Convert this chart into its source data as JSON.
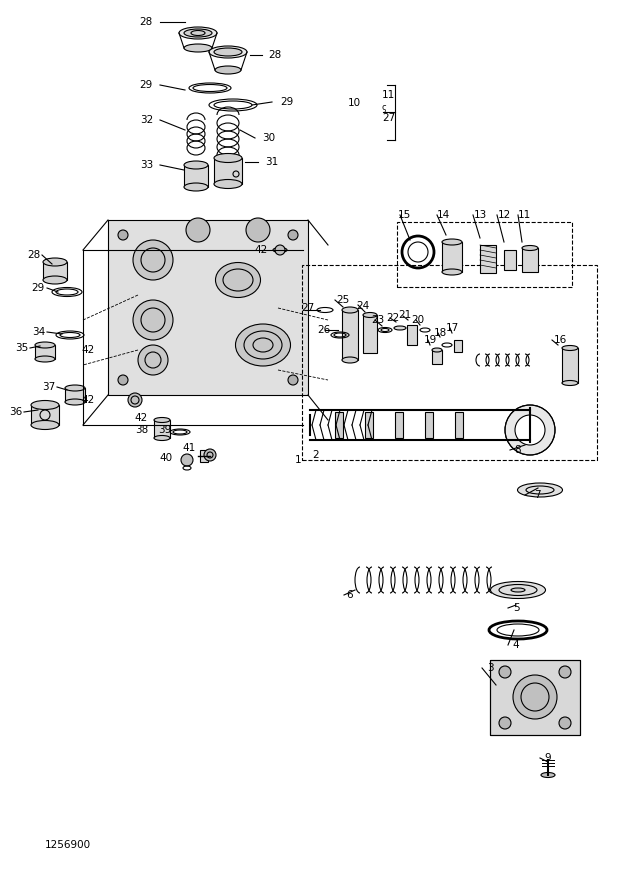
{
  "bg_color": "#ffffff",
  "line_color": "#000000",
  "part_number_text": "1256900",
  "figsize": [
    6.2,
    8.73
  ],
  "dpi": 100
}
